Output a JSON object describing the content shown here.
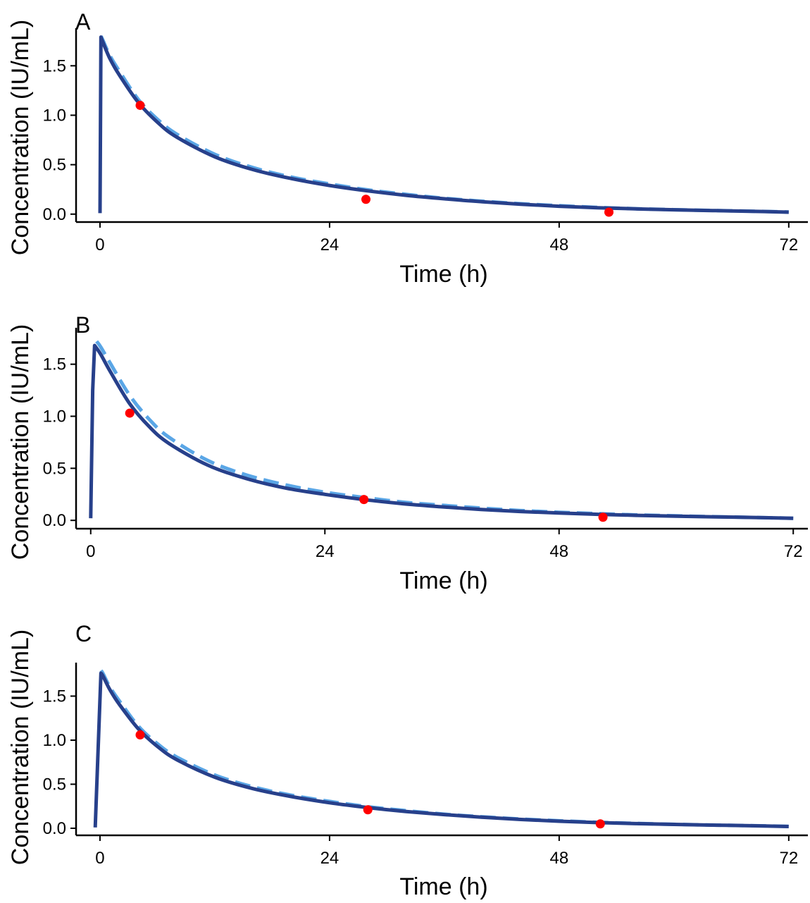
{
  "chart_data": [
    {
      "type": "line",
      "panel_label": "A",
      "xlabel": "Time (h)",
      "ylabel": "Concentration (IU/mL)",
      "xlim": [
        -2.5,
        74
      ],
      "ylim": [
        -0.08,
        1.88
      ],
      "x_ticks": [
        0,
        24,
        48,
        72
      ],
      "y_ticks": [
        0.0,
        0.5,
        1.0,
        1.5
      ],
      "grid": false,
      "legend": "none",
      "peak_time": 0.1,
      "series": [
        {
          "style": "solid",
          "color": "#27408b",
          "x": [
            0,
            0.1,
            0.3,
            1,
            2,
            4,
            6,
            8,
            12,
            16,
            20,
            24,
            28,
            32,
            36,
            40,
            44,
            48,
            52,
            56,
            60,
            64,
            68,
            72
          ],
          "y": [
            0.01,
            1.79,
            1.74,
            1.58,
            1.41,
            1.13,
            0.93,
            0.78,
            0.58,
            0.45,
            0.36,
            0.29,
            0.235,
            0.19,
            0.155,
            0.125,
            0.1,
            0.08,
            0.065,
            0.053,
            0.044,
            0.036,
            0.029,
            0.02
          ]
        },
        {
          "style": "dashed",
          "color": "#5aa6e6",
          "x": [
            0.1,
            0.3,
            1,
            2,
            4,
            6,
            8,
            12,
            16,
            20,
            24,
            28,
            32,
            36,
            40,
            44,
            48,
            52,
            56,
            60,
            64,
            68,
            72
          ],
          "y": [
            1.8,
            1.76,
            1.61,
            1.45,
            1.16,
            0.96,
            0.81,
            0.605,
            0.47,
            0.375,
            0.305,
            0.245,
            0.2,
            0.16,
            0.13,
            0.105,
            0.085,
            0.068,
            0.055,
            0.045,
            0.037,
            0.03,
            0.022
          ]
        }
      ],
      "observed": {
        "color": "#ff0000",
        "x": [
          4.2,
          27.8,
          53.2
        ],
        "y": [
          1.1,
          0.15,
          0.02
        ]
      }
    },
    {
      "type": "line",
      "panel_label": "B",
      "xlabel": "Time (h)",
      "ylabel": "Concentration (IU/mL)",
      "xlim": [
        -1.5,
        73.5
      ],
      "ylim": [
        -0.08,
        1.85
      ],
      "x_ticks": [
        0,
        24,
        48,
        72
      ],
      "y_ticks": [
        0.0,
        0.5,
        1.0,
        1.5
      ],
      "grid": false,
      "legend": "none",
      "peak_time": 0.4,
      "series": [
        {
          "style": "solid",
          "color": "#27408b",
          "x": [
            0,
            0.2,
            0.4,
            1,
            2,
            4,
            6,
            8,
            12,
            16,
            20,
            24,
            28,
            32,
            36,
            40,
            44,
            48,
            52,
            56,
            60,
            64,
            68,
            72
          ],
          "y": [
            0.02,
            1.25,
            1.68,
            1.6,
            1.43,
            1.12,
            0.9,
            0.74,
            0.53,
            0.4,
            0.31,
            0.25,
            0.2,
            0.16,
            0.13,
            0.105,
            0.085,
            0.07,
            0.058,
            0.048,
            0.04,
            0.034,
            0.028,
            0.02
          ]
        },
        {
          "style": "dashed",
          "color": "#5aa6e6",
          "x": [
            0.6,
            1,
            2,
            4,
            6,
            8,
            12,
            16,
            20,
            24,
            28,
            32,
            36,
            40,
            44,
            48,
            52,
            56,
            60,
            64,
            68,
            72
          ],
          "y": [
            1.72,
            1.67,
            1.51,
            1.2,
            0.97,
            0.8,
            0.575,
            0.435,
            0.34,
            0.27,
            0.22,
            0.175,
            0.145,
            0.118,
            0.095,
            0.078,
            0.064,
            0.052,
            0.043,
            0.035,
            0.028,
            0.02
          ]
        }
      ],
      "observed": {
        "color": "#ff0000",
        "x": [
          4.0,
          28.0,
          52.5
        ],
        "y": [
          1.03,
          0.2,
          0.03
        ]
      }
    },
    {
      "type": "line",
      "panel_label": "C",
      "xlabel": "Time (h)",
      "ylabel": "Concentration (IU/mL)",
      "xlim": [
        -2.5,
        74
      ],
      "ylim": [
        -0.08,
        1.88
      ],
      "x_ticks": [
        0,
        24,
        48,
        72
      ],
      "y_ticks": [
        0.0,
        0.5,
        1.0,
        1.5
      ],
      "grid": false,
      "legend": "none",
      "peak_time": 0.1,
      "series": [
        {
          "style": "solid",
          "color": "#27408b",
          "x": [
            -0.5,
            0.1,
            0.3,
            1,
            2,
            4,
            6,
            8,
            12,
            16,
            20,
            24,
            28,
            32,
            36,
            40,
            44,
            48,
            52,
            56,
            60,
            64,
            68,
            72
          ],
          "y": [
            0.01,
            1.76,
            1.73,
            1.58,
            1.41,
            1.13,
            0.93,
            0.78,
            0.58,
            0.45,
            0.36,
            0.29,
            0.235,
            0.19,
            0.155,
            0.125,
            0.1,
            0.08,
            0.065,
            0.053,
            0.044,
            0.036,
            0.029,
            0.02
          ]
        },
        {
          "style": "dashed",
          "color": "#5aa6e6",
          "x": [
            0.1,
            0.3,
            1,
            2,
            4,
            6,
            8,
            12,
            16,
            20,
            24,
            28,
            32,
            36,
            40,
            44,
            48,
            52,
            56,
            60,
            64,
            68,
            72
          ],
          "y": [
            1.79,
            1.76,
            1.61,
            1.45,
            1.16,
            0.96,
            0.81,
            0.605,
            0.47,
            0.375,
            0.305,
            0.245,
            0.2,
            0.16,
            0.13,
            0.105,
            0.085,
            0.068,
            0.055,
            0.045,
            0.037,
            0.03,
            0.022
          ]
        }
      ],
      "observed": {
        "color": "#ff0000",
        "x": [
          4.2,
          28.0,
          52.3
        ],
        "y": [
          1.06,
          0.21,
          0.05
        ]
      }
    }
  ]
}
